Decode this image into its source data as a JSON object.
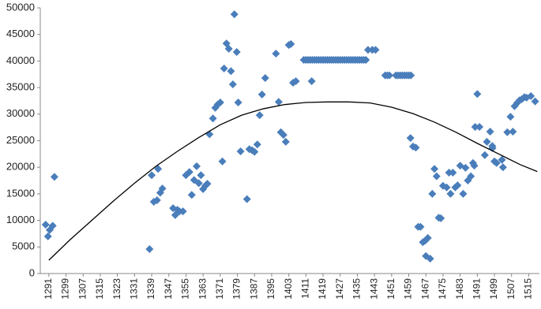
{
  "chart_data": {
    "type": "scatter",
    "xlim": [
      1287,
      1520
    ],
    "xticks": [
      1291,
      1299,
      1307,
      1315,
      1323,
      1331,
      1339,
      1347,
      1355,
      1363,
      1371,
      1379,
      1387,
      1395,
      1403,
      1411,
      1419,
      1427,
      1435,
      1443,
      1451,
      1459,
      1467,
      1475,
      1483,
      1491,
      1499,
      1507,
      1515
    ],
    "ylim": [
      0,
      50000
    ],
    "yticks": [
      0,
      5000,
      10000,
      15000,
      20000,
      25000,
      30000,
      35000,
      40000,
      45000,
      50000
    ],
    "grid": false,
    "series": [
      {
        "type": "scatter",
        "color": "#4a7ebb",
        "x": [
          1289.5,
          1290.6,
          1291.4,
          1292.8,
          1293.6,
          1338,
          1339,
          1340,
          1341.5,
          1342,
          1343,
          1344,
          1349,
          1350,
          1351,
          1352,
          1353.6,
          1355,
          1356.6,
          1357.7,
          1358.8,
          1360,
          1361,
          1362,
          1363,
          1364,
          1365,
          1366,
          1367.6,
          1368.7,
          1369.8,
          1371,
          1372,
          1372.8,
          1373.9,
          1375,
          1376,
          1376.9,
          1377.6,
          1378.7,
          1379.4,
          1380.5,
          1383.5,
          1384.6,
          1385.9,
          1387,
          1388.3,
          1389.4,
          1390.5,
          1392,
          1397,
          1398.3,
          1399.3,
          1400.5,
          1401.6,
          1403,
          1404,
          1405,
          1406.3,
          1410,
          1411,
          1412,
          1413,
          1413.7,
          1414,
          1415,
          1416,
          1417,
          1418,
          1419,
          1420,
          1421,
          1422,
          1423,
          1424,
          1425,
          1426,
          1427,
          1428,
          1429,
          1430,
          1431,
          1432,
          1433,
          1434,
          1435,
          1436,
          1437,
          1438,
          1439,
          1440,
          1442,
          1443.5,
          1448,
          1449,
          1450,
          1453,
          1454,
          1455,
          1456,
          1457,
          1458,
          1459,
          1460,
          1459.8,
          1461,
          1462.3,
          1463.4,
          1464.5,
          1465.6,
          1466.7,
          1467.9,
          1467,
          1469,
          1470,
          1471,
          1472,
          1473,
          1474,
          1475,
          1476.7,
          1477.8,
          1478.5,
          1479.6,
          1480.7,
          1481.8,
          1483,
          1484.4,
          1485.5,
          1486.6,
          1488,
          1489,
          1489.6,
          1490,
          1491,
          1492,
          1494.5,
          1495.5,
          1497,
          1498,
          1498.1,
          1499,
          1500,
          1502.5,
          1503,
          1505,
          1506.5,
          1507.6,
          1508.4,
          1509.6,
          1510.7,
          1511.8,
          1513,
          1514,
          1516,
          1518
        ],
        "values": [
          9200,
          7000,
          8200,
          9000,
          18200,
          4600,
          18500,
          13500,
          13800,
          19700,
          15200,
          16000,
          12300,
          11000,
          12000,
          11700,
          11700,
          18500,
          19100,
          14800,
          17600,
          20200,
          17000,
          18500,
          15900,
          16500,
          16900,
          26200,
          29200,
          31200,
          31800,
          32200,
          21100,
          38600,
          43300,
          42300,
          38100,
          35600,
          48800,
          41700,
          32200,
          23000,
          14000,
          23400,
          23200,
          22900,
          24300,
          29800,
          33700,
          36800,
          41400,
          32300,
          26600,
          26100,
          24800,
          43000,
          43200,
          35900,
          36200,
          40200,
          40200,
          40200,
          40200,
          36200,
          40200,
          40200,
          40200,
          40200,
          40200,
          40200,
          40200,
          40200,
          40200,
          40200,
          40200,
          40200,
          40200,
          40200,
          40200,
          40200,
          40200,
          40200,
          40200,
          40200,
          40200,
          40200,
          40200,
          40200,
          40200,
          40200,
          42100,
          42100,
          42100,
          37300,
          37300,
          37300,
          37300,
          37300,
          37300,
          37300,
          37300,
          37300,
          37300,
          37300,
          25500,
          23900,
          23700,
          8800,
          8800,
          5900,
          6200,
          6700,
          3300,
          2800,
          15000,
          19700,
          18300,
          10500,
          10400,
          16500,
          16200,
          19000,
          15000,
          19000,
          16200,
          16600,
          20300,
          15000,
          19900,
          17500,
          18300,
          20800,
          20300,
          27600,
          33800,
          27600,
          22300,
          24800,
          26700,
          24000,
          23600,
          21100,
          20800,
          21400,
          20000,
          26600,
          29500,
          26700,
          31500,
          32100,
          32600,
          32800,
          33200,
          33100,
          33400,
          32400
        ]
      },
      {
        "type": "line",
        "color": "#000000",
        "x": [
          1291,
          1301,
          1311,
          1321,
          1331,
          1341,
          1351,
          1361,
          1371,
          1381,
          1391,
          1401,
          1411,
          1421,
          1431,
          1441,
          1451,
          1461,
          1471,
          1481,
          1491,
          1501,
          1511,
          1519
        ],
        "values": [
          2500,
          6400,
          10000,
          13600,
          17000,
          20200,
          23000,
          25600,
          28000,
          29800,
          31000,
          31800,
          32200,
          32300,
          32300,
          32100,
          31300,
          30100,
          28500,
          26600,
          24500,
          22500,
          20500,
          19200
        ]
      }
    ]
  }
}
